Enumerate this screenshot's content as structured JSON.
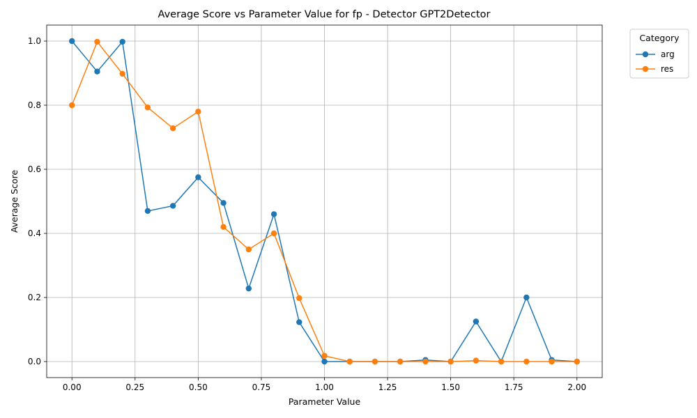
{
  "chart_data": {
    "type": "line",
    "title": "Average Score vs Parameter Value for fp - Detector GPT2Detector",
    "xlabel": "Parameter Value",
    "ylabel": "Average Score",
    "xlim": [
      -0.1,
      2.1
    ],
    "ylim": [
      -0.05,
      1.05
    ],
    "xticks": [
      0.0,
      0.25,
      0.5,
      0.75,
      1.0,
      1.25,
      1.5,
      1.75,
      2.0
    ],
    "xtick_labels": [
      "0.00",
      "0.25",
      "0.50",
      "0.75",
      "1.00",
      "1.25",
      "1.50",
      "1.75",
      "2.00"
    ],
    "yticks": [
      0.0,
      0.2,
      0.4,
      0.6,
      0.8,
      1.0
    ],
    "ytick_labels": [
      "0.0",
      "0.2",
      "0.4",
      "0.6",
      "0.8",
      "1.0"
    ],
    "grid": true,
    "legend": {
      "title": "Category",
      "placement": "outside-top-right"
    },
    "x": [
      0.0,
      0.1,
      0.2,
      0.3,
      0.4,
      0.5,
      0.6,
      0.7,
      0.8,
      0.9,
      1.0,
      1.1,
      1.2,
      1.3,
      1.4,
      1.5,
      1.6,
      1.7,
      1.8,
      1.9,
      2.0
    ],
    "series": [
      {
        "name": "arg",
        "color": "#1f77b4",
        "values": [
          1.0,
          0.905,
          0.998,
          0.47,
          0.486,
          0.575,
          0.495,
          0.228,
          0.46,
          0.123,
          0.0,
          0.0,
          0.0,
          0.0,
          0.005,
          0.0,
          0.125,
          0.0,
          0.2,
          0.005,
          0.0
        ]
      },
      {
        "name": "res",
        "color": "#ff7f0e",
        "values": [
          0.8,
          0.998,
          0.898,
          0.793,
          0.728,
          0.78,
          0.42,
          0.35,
          0.4,
          0.198,
          0.018,
          0.0,
          0.0,
          0.0,
          0.0,
          0.0,
          0.003,
          0.0,
          0.0,
          0.0,
          0.0
        ]
      }
    ]
  }
}
